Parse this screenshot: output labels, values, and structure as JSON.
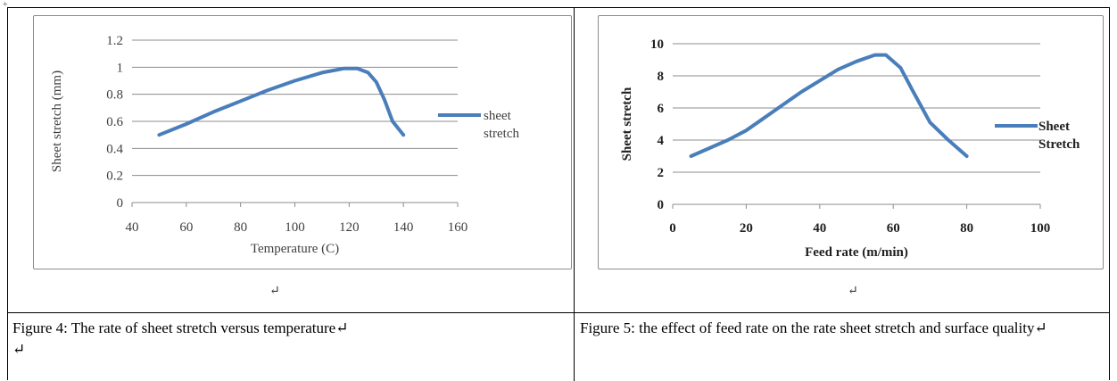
{
  "chart_data": [
    {
      "type": "line",
      "xlabel": "Temperature (C)",
      "ylabel": "Sheet stretch (mm)",
      "xlim": [
        40,
        160
      ],
      "ylim": [
        0,
        1.2
      ],
      "x_ticks": [
        "40",
        "60",
        "80",
        "100",
        "120",
        "140",
        "160"
      ],
      "y_ticks": [
        "0",
        "0.2",
        "0.4",
        "0.6",
        "0.8",
        "1",
        "1.2"
      ],
      "grid": true,
      "legend_position": "right",
      "series": [
        {
          "name": "sheet stretch",
          "color": "#4a7ebb",
          "x": [
            50,
            60,
            70,
            80,
            90,
            100,
            110,
            118,
            123,
            127,
            130,
            133,
            136,
            140
          ],
          "y": [
            0.5,
            0.58,
            0.67,
            0.75,
            0.83,
            0.9,
            0.96,
            0.99,
            0.99,
            0.96,
            0.89,
            0.76,
            0.6,
            0.5
          ]
        }
      ]
    },
    {
      "type": "line",
      "xlabel": "Feed rate (m/min)",
      "ylabel": "Sheet stretch",
      "xlim": [
        0,
        100
      ],
      "ylim": [
        0,
        10
      ],
      "x_ticks": [
        "0",
        "20",
        "40",
        "60",
        "80",
        "100"
      ],
      "y_ticks": [
        "0",
        "2",
        "4",
        "6",
        "8",
        "10"
      ],
      "grid": true,
      "legend_position": "right",
      "series": [
        {
          "name": "Sheet Stretch",
          "color": "#4a7ebb",
          "x": [
            5,
            10,
            15,
            20,
            25,
            30,
            35,
            40,
            45,
            50,
            55,
            58,
            62,
            65,
            70,
            75,
            80
          ],
          "y": [
            3.0,
            3.5,
            4.0,
            4.6,
            5.4,
            6.2,
            7.0,
            7.7,
            8.4,
            8.9,
            9.3,
            9.3,
            8.5,
            7.2,
            5.1,
            4.0,
            3.0
          ]
        }
      ]
    }
  ],
  "captions": {
    "left": "Figure 4: The rate of sheet stretch versus temperature↵\n↵",
    "right": "Figure 5: the effect of feed rate on the rate sheet stretch and surface quality↵"
  },
  "marks": {
    "paragraph": "↵"
  }
}
